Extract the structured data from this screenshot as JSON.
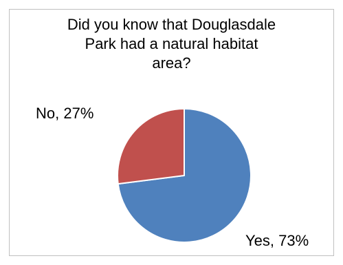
{
  "chart_data": {
    "type": "pie",
    "title_lines": [
      "Did you know that Douglasdale",
      "Park had a natural habitat",
      "area?"
    ],
    "slices": [
      {
        "name": "Yes",
        "value": 73,
        "label": "Yes, 73%",
        "color": "#4f81bd"
      },
      {
        "name": "No",
        "value": 27,
        "label": "No, 27%",
        "color": "#c0504d"
      }
    ],
    "start_angle_deg": 0,
    "direction": "clockwise",
    "legend": "none"
  }
}
